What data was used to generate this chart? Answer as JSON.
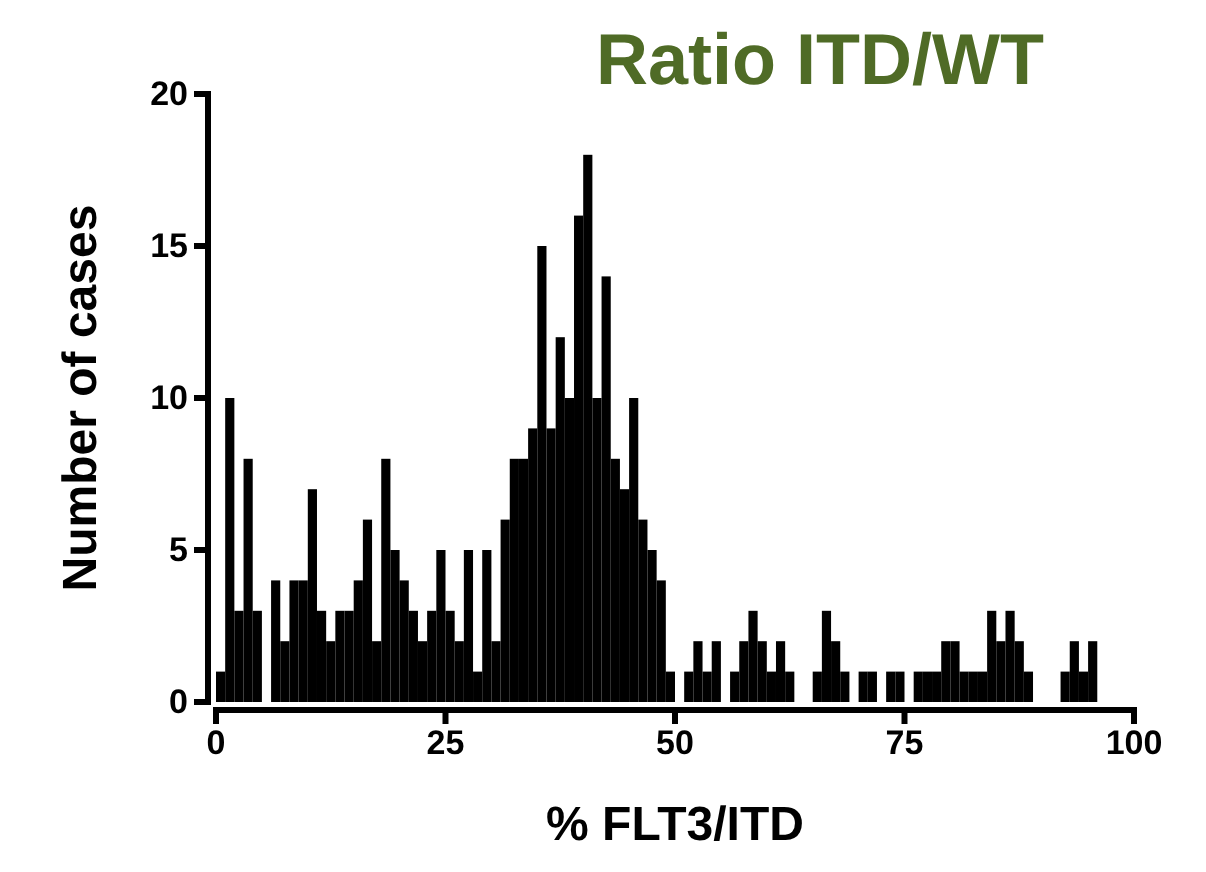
{
  "chart_data": {
    "type": "histogram",
    "title": "Ratio ITD/WT",
    "xlabel": "% FLT3/ITD",
    "ylabel": "Number of cases",
    "color": "#000000",
    "bins": [
      0,
      1,
      2,
      3,
      4,
      5,
      6,
      7,
      8,
      9,
      10,
      11,
      12,
      13,
      14,
      15,
      16,
      17,
      18,
      19,
      20,
      21,
      22,
      23,
      24,
      25,
      26,
      27,
      28,
      29,
      30,
      31,
      32,
      33,
      34,
      35,
      36,
      37,
      38,
      39,
      40,
      41,
      42,
      43,
      44,
      45,
      46,
      47,
      48,
      49,
      50,
      51,
      52,
      53,
      54,
      55,
      56,
      57,
      58,
      59,
      60,
      61,
      62,
      63,
      64,
      65,
      66,
      67,
      68,
      69,
      70,
      71,
      72,
      73,
      74,
      75,
      76,
      77,
      78,
      79,
      80,
      81,
      82,
      83,
      84,
      85,
      86,
      87,
      88,
      89,
      90,
      91,
      92,
      93,
      94,
      95,
      96,
      97
    ],
    "values": [
      1,
      10,
      3,
      8,
      3,
      0,
      4,
      2,
      4,
      4,
      7,
      3,
      2,
      3,
      3,
      4,
      6,
      2,
      8,
      5,
      4,
      3,
      2,
      3,
      5,
      3,
      2,
      5,
      1,
      5,
      2,
      6,
      8,
      8,
      9,
      15,
      9,
      12,
      10,
      16,
      18,
      10,
      14,
      8,
      7,
      10,
      6,
      5,
      4,
      1,
      0,
      1,
      2,
      1,
      2,
      0,
      1,
      2,
      3,
      2,
      1,
      2,
      1,
      0,
      0,
      1,
      3,
      2,
      1,
      0,
      1,
      1,
      0,
      1,
      1,
      0,
      1,
      1,
      1,
      2,
      2,
      1,
      1,
      1,
      3,
      2,
      3,
      2,
      1,
      0,
      0,
      0,
      1,
      2,
      1,
      2,
      0
    ],
    "xlim": [
      0,
      100
    ],
    "xticks": [
      0,
      25,
      50,
      75,
      100
    ],
    "ylim": [
      0,
      20
    ],
    "yticks": [
      0,
      5,
      10,
      15,
      20
    ]
  }
}
